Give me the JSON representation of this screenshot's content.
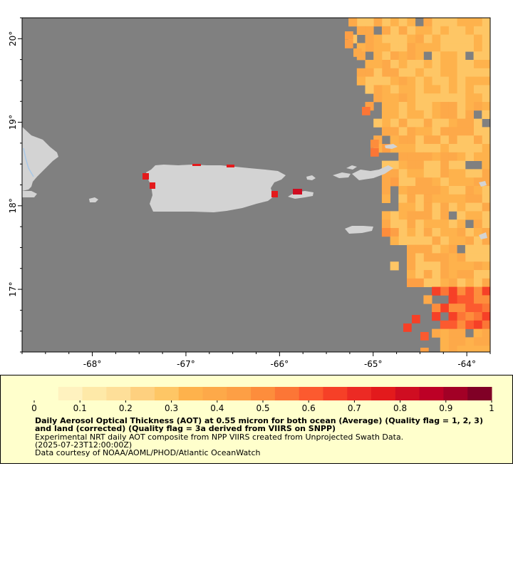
{
  "map": {
    "lon_range": [
      -68.75,
      -63.75
    ],
    "lat_range": [
      16.25,
      20.25
    ],
    "lon_ticks": [
      {
        "value": -68,
        "label": "-68°"
      },
      {
        "value": -67,
        "label": "-67°"
      },
      {
        "value": -66,
        "label": "-66°"
      },
      {
        "value": -65,
        "label": "-65°"
      },
      {
        "value": -64,
        "label": "-64°"
      }
    ],
    "lat_ticks": [
      {
        "value": 20,
        "label": "20°"
      },
      {
        "value": 19,
        "label": "19°"
      },
      {
        "value": 18,
        "label": "18°"
      },
      {
        "value": 17,
        "label": "17°"
      }
    ],
    "colors": {
      "missing_data": "#808080",
      "land": "#d3d3d3",
      "frame": "#000000"
    }
  },
  "legend": {
    "scale_min": 0,
    "scale_max": 1,
    "tick_labels": [
      "0",
      "0.1",
      "0.2",
      "0.3",
      "0.4",
      "0.5",
      "0.6",
      "0.7",
      "0.8",
      "0.9",
      "1"
    ],
    "colors": [
      "#ffffcc",
      "#fff2bf",
      "#fee9a8",
      "#fedf99",
      "#fed07f",
      "#fec665",
      "#feb24c",
      "#fda949",
      "#fd9f45",
      "#fd8d3c",
      "#fc7636",
      "#fc5a2f",
      "#f64027",
      "#ec2a24",
      "#e31a1c",
      "#cf0d21",
      "#bd0026",
      "#a20026",
      "#800026"
    ],
    "title": "Daily Aerosol Optical Thickness (AOT) at 0.55 micron for both ocean (Average) (Quality flag = 1, 2, 3) and land (corrected) (Quality flag = 3a derived from VIIRS on SNPP)",
    "line1": "Experimental NRT daily AOT composite from NPP VIIRS created from Unprojected Swath Data.",
    "line2": "(2025-07-23T12:00:00Z)",
    "line3": "Data courtesy of NOAA/AOML/PHOD/Atlantic OceanWatch"
  }
}
